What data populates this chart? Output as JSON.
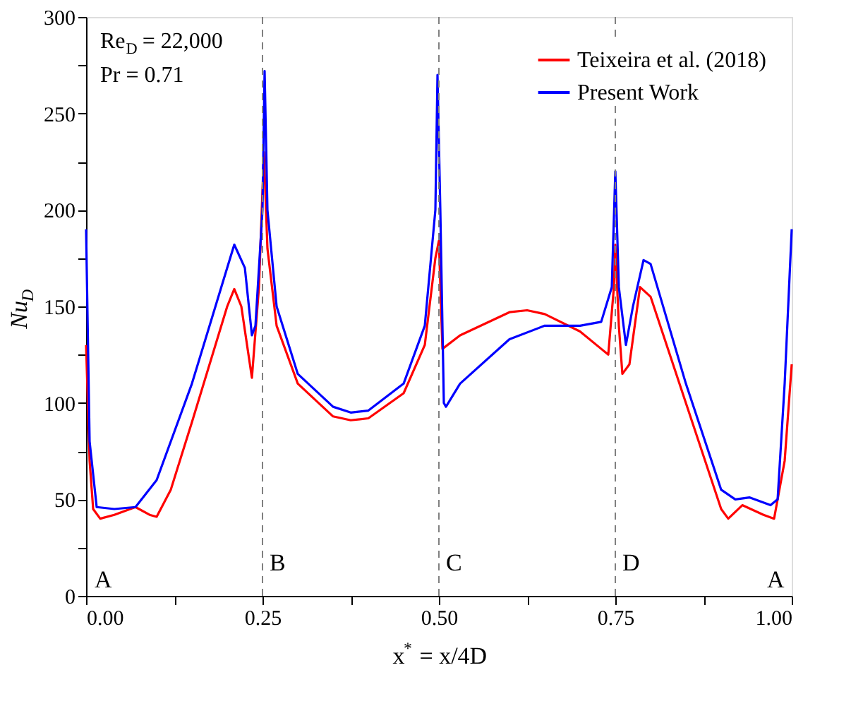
{
  "chart_data": {
    "type": "line",
    "xlabel": "x$^{*}$ = x/4D",
    "ylabel": "Nu$_{D}$",
    "xlim": [
      0,
      1
    ],
    "ylim": [
      0,
      300
    ],
    "xticks": [
      {
        "value": 0,
        "label": "0.00"
      },
      {
        "value": 0.125,
        "label": null
      },
      {
        "value": 0.25,
        "label": "0.25"
      },
      {
        "value": 0.375,
        "label": null
      },
      {
        "value": 0.5,
        "label": "0.50"
      },
      {
        "value": 0.625,
        "label": null
      },
      {
        "value": 0.75,
        "label": "0.75"
      },
      {
        "value": 0.875,
        "label": null
      },
      {
        "value": 1,
        "label": "1.00"
      }
    ],
    "yticks": [
      0,
      {
        "value": 25,
        "label": null
      },
      50,
      {
        "value": 75,
        "label": null
      },
      100,
      {
        "value": 125,
        "label": null
      },
      150,
      {
        "value": 175,
        "label": null
      },
      200,
      {
        "value": 225,
        "label": null
      },
      250,
      {
        "value": 275,
        "label": null
      },
      300
    ],
    "grid": false,
    "legend": "top right",
    "marker": "none",
    "line_style": "solid",
    "series": [
      {
        "name": "Teixeira et al. (2018)",
        "color": "#ff0000",
        "x": [
          0,
          0.005,
          0.01,
          0.02,
          0.04,
          0.07,
          0.09,
          0.1,
          0.12,
          0.15,
          0.2,
          0.21,
          0.22,
          0.235,
          0.245,
          0.252,
          0.257,
          0.27,
          0.3,
          0.35,
          0.375,
          0.4,
          0.45,
          0.48,
          0.495,
          0.5,
          0.505,
          0.53,
          0.6,
          0.625,
          0.65,
          0.7,
          0.73,
          0.74,
          0.748,
          0.75,
          0.755,
          0.76,
          0.77,
          0.785,
          0.8,
          0.85,
          0.9,
          0.91,
          0.93,
          0.96,
          0.975,
          0.99,
          1
        ],
        "values": [
          130,
          70,
          45,
          40,
          42,
          46,
          42,
          41,
          55,
          90,
          150,
          159,
          150,
          113,
          160,
          230,
          180,
          140,
          110,
          93,
          91,
          92,
          105,
          130,
          175,
          184,
          128,
          135,
          147,
          148,
          146,
          137,
          128,
          125,
          160,
          182,
          140,
          115,
          120,
          160,
          155,
          100,
          45,
          40,
          47,
          42,
          40,
          70,
          120
        ]
      },
      {
        "name": "Present Work",
        "color": "#0000ff",
        "x": [
          0,
          0.005,
          0.015,
          0.04,
          0.07,
          0.1,
          0.15,
          0.2,
          0.21,
          0.225,
          0.235,
          0.24,
          0.25,
          0.253,
          0.257,
          0.27,
          0.3,
          0.35,
          0.375,
          0.4,
          0.45,
          0.48,
          0.495,
          0.498,
          0.502,
          0.507,
          0.51,
          0.53,
          0.6,
          0.65,
          0.7,
          0.73,
          0.745,
          0.75,
          0.755,
          0.765,
          0.775,
          0.79,
          0.8,
          0.85,
          0.9,
          0.92,
          0.94,
          0.97,
          0.98,
          0.99,
          1
        ],
        "values": [
          190,
          80,
          46,
          45,
          46,
          60,
          110,
          170,
          182,
          170,
          135,
          140,
          200,
          272,
          200,
          150,
          115,
          98,
          95,
          96,
          110,
          140,
          200,
          270,
          200,
          100,
          98,
          110,
          133,
          140,
          140,
          142,
          160,
          220,
          160,
          130,
          150,
          174,
          172,
          110,
          55,
          50,
          51,
          47,
          50,
          110,
          190
        ]
      }
    ],
    "ref_lines": [
      {
        "axis": "x",
        "value": 0.25,
        "label": "B",
        "color": "#808080",
        "line_style": "dashed"
      },
      {
        "axis": "x",
        "value": 0.5,
        "label": "C",
        "color": "#808080",
        "line_style": "dashed"
      },
      {
        "axis": "x",
        "value": 0.75,
        "label": "D",
        "color": "#808080",
        "line_style": "dashed"
      }
    ],
    "annotations": [
      "Re$_{D}$ = 22,000",
      "Pr = 0.71",
      "A",
      "A"
    ]
  }
}
